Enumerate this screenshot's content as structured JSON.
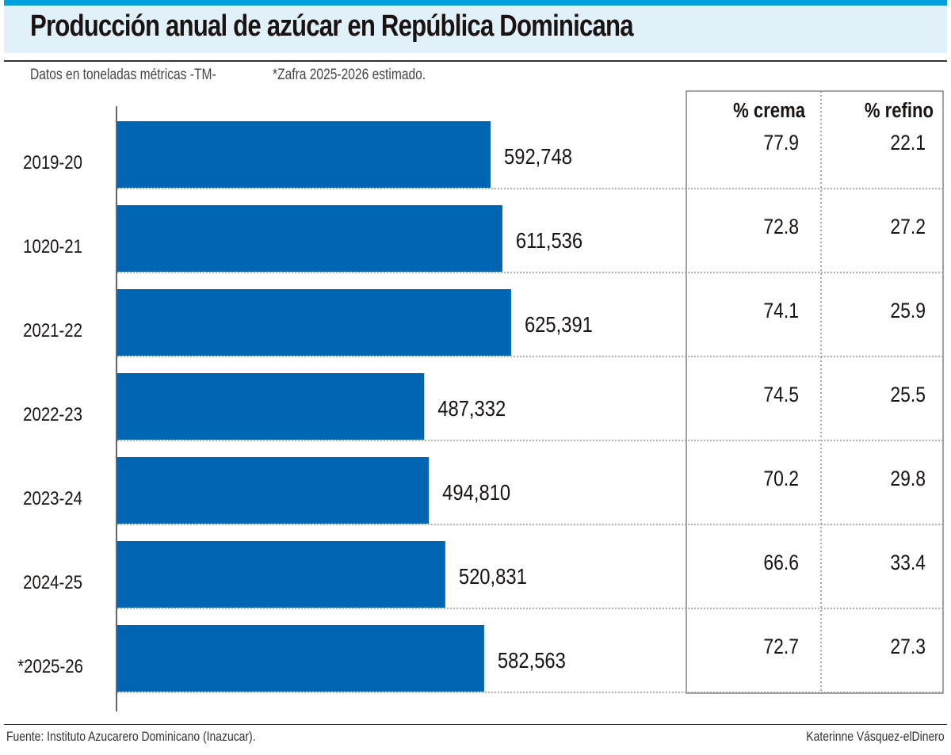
{
  "title": "Producción anual de azúcar en República Dominicana",
  "subtitle_units": "Datos en toneladas métricas -TM-",
  "subtitle_note": "*Zafra 2025-2026 estimado.",
  "source": "Fuente: Instituto Azucarero Dominicano (Inazucar).",
  "credit": "Katerinne Vásquez-elDinero",
  "colors": {
    "bar": "#0066b3",
    "band": "#e1f1fa",
    "strip": "#00a0df"
  },
  "chart_data": {
    "type": "bar",
    "orientation": "horizontal",
    "title": "Producción anual de azúcar en República Dominicana",
    "categories": [
      "2019-20",
      "1020-21",
      "2021-22",
      "2022-23",
      "2023-24",
      "2024-25",
      "*2025-26"
    ],
    "values": [
      592748,
      611536,
      625391,
      487332,
      494810,
      520831,
      582563
    ],
    "value_labels": [
      "592,748",
      "611,536",
      "625,391",
      "487,332",
      "494,810",
      "520,831",
      "582,563"
    ],
    "unit": "TM",
    "grid": false,
    "table": {
      "headers": [
        "% crema",
        "% refino"
      ],
      "crema": [
        "77.9",
        "72.8",
        "74.1",
        "74.5",
        "70.2",
        "66.6",
        "72.7"
      ],
      "refino": [
        "22.1",
        "27.2",
        "25.9",
        "25.5",
        "29.8",
        "33.4",
        "27.3"
      ]
    }
  }
}
